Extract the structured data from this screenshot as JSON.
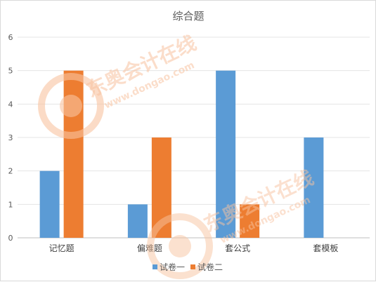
{
  "chart_data": {
    "type": "bar",
    "title": "综合题",
    "categories": [
      "记忆题",
      "偏难题",
      "套公式",
      "套模板"
    ],
    "series": [
      {
        "name": "试卷一",
        "values": [
          2,
          1,
          5,
          3
        ],
        "color": "#5b9bd5"
      },
      {
        "name": "试卷二",
        "values": [
          5,
          3,
          1,
          0
        ],
        "color": "#ed7d31"
      }
    ],
    "xlabel": "",
    "ylabel": "",
    "ylim": [
      0,
      6
    ],
    "yticks": [
      0,
      1,
      2,
      3,
      4,
      5,
      6
    ],
    "grid": true,
    "legend": "bottom"
  },
  "watermark": {
    "brand_text": "东奥会计在线",
    "url_text": "www.dongao.com",
    "color": "#f5a878"
  }
}
